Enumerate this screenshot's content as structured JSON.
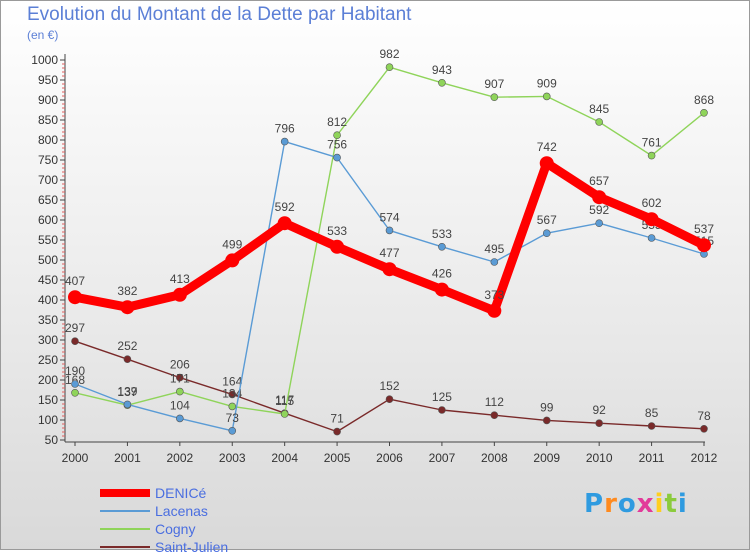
{
  "chart_data": {
    "type": "line",
    "title": "Evolution du Montant de la Dette par Habitant",
    "subtitle": "(en €)",
    "categories": [
      "2000",
      "2001",
      "2002",
      "2003",
      "2004",
      "2005",
      "2006",
      "2007",
      "2008",
      "2009",
      "2010",
      "2011",
      "2012"
    ],
    "ylim": [
      50,
      1000
    ],
    "yticks": [
      50,
      100,
      150,
      200,
      250,
      300,
      350,
      400,
      450,
      500,
      550,
      600,
      650,
      700,
      750,
      800,
      850,
      900,
      950,
      1000
    ],
    "grid": false,
    "legend_position": "bottom-left",
    "series": [
      {
        "name": "DENICé",
        "color": "#ff0000",
        "values": [
          407,
          382,
          413,
          499,
          592,
          533,
          477,
          426,
          373,
          742,
          657,
          602,
          537
        ],
        "labels": [
          "407",
          "382",
          "413",
          "499",
          "592",
          "533",
          "477",
          "426",
          "373",
          "742",
          "657",
          "602",
          "537"
        ]
      },
      {
        "name": "Lacenas",
        "color": "#5a9bd5",
        "values": [
          190,
          139,
          104,
          73,
          796,
          756,
          574,
          533,
          495,
          567,
          592,
          555,
          515
        ],
        "labels": [
          "190",
          "139",
          "104",
          "73",
          "796",
          "756",
          "574",
          "533",
          "495",
          "567",
          "592",
          "555",
          "515"
        ]
      },
      {
        "name": "Cogny",
        "color": "#8fd45a",
        "values": [
          168,
          137,
          171,
          134,
          115,
          812,
          982,
          943,
          907,
          909,
          845,
          761,
          868
        ],
        "labels": [
          "168",
          "137",
          "171",
          "134",
          "115",
          "812",
          "982",
          "943",
          "907",
          "909",
          "845",
          "761",
          "868"
        ]
      },
      {
        "name": "Saint-Julien",
        "color": "#7a2a2a",
        "values": [
          297,
          252,
          206,
          164,
          117,
          71,
          152,
          125,
          112,
          99,
          92,
          85,
          78
        ],
        "labels": [
          "297",
          "252",
          "206",
          "164",
          "117",
          "71",
          "152",
          "125",
          "112",
          "99",
          "92",
          "85",
          "78"
        ]
      }
    ]
  },
  "logo": {
    "letters": [
      "P",
      "r",
      "o",
      "x",
      "i",
      "t",
      "i"
    ],
    "colors": [
      "#2f9be0",
      "#ff8a1e",
      "#2f9be0",
      "#e23a9a",
      "#ffcf1e",
      "#8bcb3c",
      "#2f9be0"
    ]
  }
}
